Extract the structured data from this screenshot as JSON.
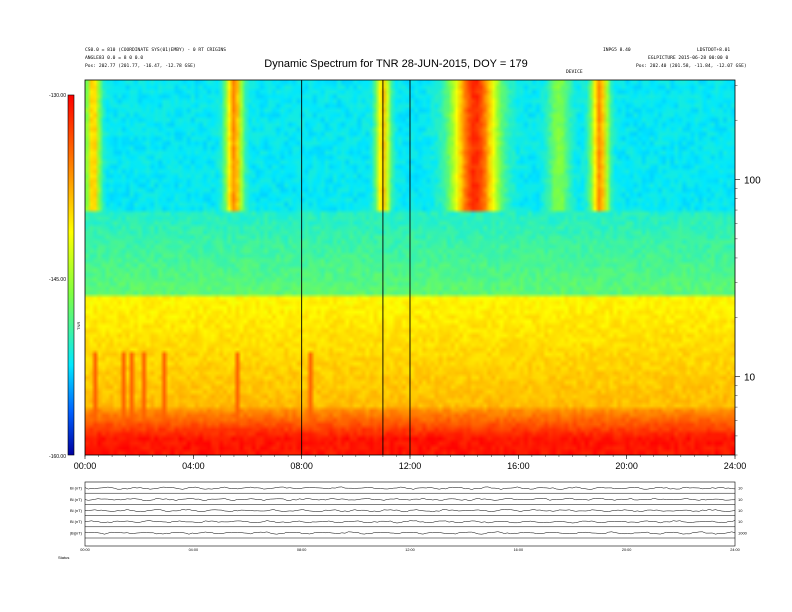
{
  "header": {
    "title": "Dynamic Spectrum for TNR 28-JUN-2015, DOY = 179",
    "left_line1": "CS0.0 = 810 (COORDINATE SYS(01)EMBY) - 0 RT CRIGINS",
    "left_line2": "ANGLE83 0.0 = 8 0 0.0",
    "left_line3": "Pos: 202.77 (201.77, -16.47, -12.78 GSE)",
    "right_line1": "INPG5 8.40",
    "right_line2": "LDSTDOT+8.01",
    "right_line3": "EGLPICTURE 2015-06-28 00:00 0",
    "right_line4": "Pos: 202.40 (201.58, -11.84, -12.07 GSE)",
    "center_small": "DEVICE"
  },
  "chart_data": {
    "type": "heatmap",
    "title": "Dynamic Spectrum for TNR 28-JUN-2015, DOY = 179",
    "x_tick_labels": [
      "00:00",
      "04:00",
      "08:00",
      "12:00",
      "16:00",
      "20:00",
      "24:00"
    ],
    "x_range_hours": [
      0,
      24
    ],
    "y_axis": {
      "scale": "log",
      "tick_labels": [
        "100",
        "10"
      ],
      "range_khz": [
        4,
        320
      ]
    },
    "colorbar": {
      "tick_labels": [
        "-130.00",
        "-145.00",
        "-160.00"
      ],
      "range": [
        -160,
        -130
      ],
      "label": "TNR"
    },
    "event_lines_hours": [
      8.0,
      11.0,
      12.0
    ],
    "colors": {
      "low": "#0000c0",
      "mid_low": "#00e8ff",
      "mid": "#90ff40",
      "mid_high": "#ffff00",
      "high": "#ff0000"
    }
  },
  "aux_panels": {
    "labels": [
      "Bi (nT)",
      "Bi (nT)",
      "Bi (nT)",
      "Bi (nT)",
      "|B|(nT)"
    ],
    "right_labels": [
      "10",
      "10",
      "10",
      "10",
      "1000"
    ],
    "x_tick_labels": [
      "00:00",
      "04:00",
      "08:00",
      "12:00",
      "16:00",
      "20:00",
      "24:00"
    ],
    "footer_label": "Status"
  }
}
